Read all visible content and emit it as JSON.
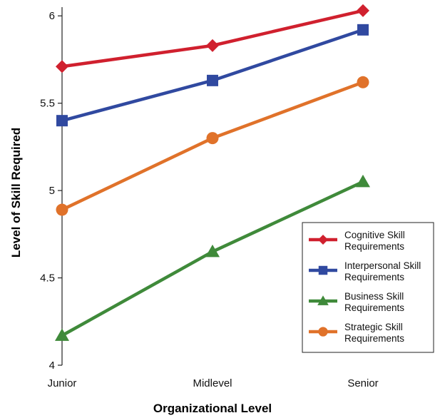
{
  "chart_data": {
    "type": "line",
    "title": "",
    "xlabel": "Organizational Level",
    "ylabel": "Level of Skill Required",
    "categories": [
      "Junior",
      "Midlevel",
      "Senior"
    ],
    "ylim": [
      4,
      6.05
    ],
    "yticks": [
      4,
      4.5,
      5,
      5.5,
      6
    ],
    "ytick_labels": [
      "4",
      "4.5",
      "5",
      "5.5",
      "6"
    ],
    "grid": false,
    "legend_position": "bottom-right",
    "series": [
      {
        "name": "Cognitive Skill Requirements",
        "legend_lines": [
          "Cognitive Skill",
          "Requirements"
        ],
        "values": [
          5.71,
          5.83,
          6.03
        ],
        "color": "#d0202e",
        "marker": "diamond"
      },
      {
        "name": "Interpersonal Skill Requirements",
        "legend_lines": [
          "Interpersonal Skill",
          "Requirements"
        ],
        "values": [
          5.4,
          5.63,
          5.92
        ],
        "color": "#3049a0",
        "marker": "square"
      },
      {
        "name": "Business Skill Requirements",
        "legend_lines": [
          "Business Skill",
          "Requirements"
        ],
        "values": [
          4.17,
          4.65,
          5.05
        ],
        "color": "#3f8a3a",
        "marker": "triangle"
      },
      {
        "name": "Strategic Skill Requirements",
        "legend_lines": [
          "Strategic Skill",
          "Requirements"
        ],
        "values": [
          4.89,
          5.3,
          5.62
        ],
        "color": "#e0722a",
        "marker": "circle"
      }
    ]
  }
}
